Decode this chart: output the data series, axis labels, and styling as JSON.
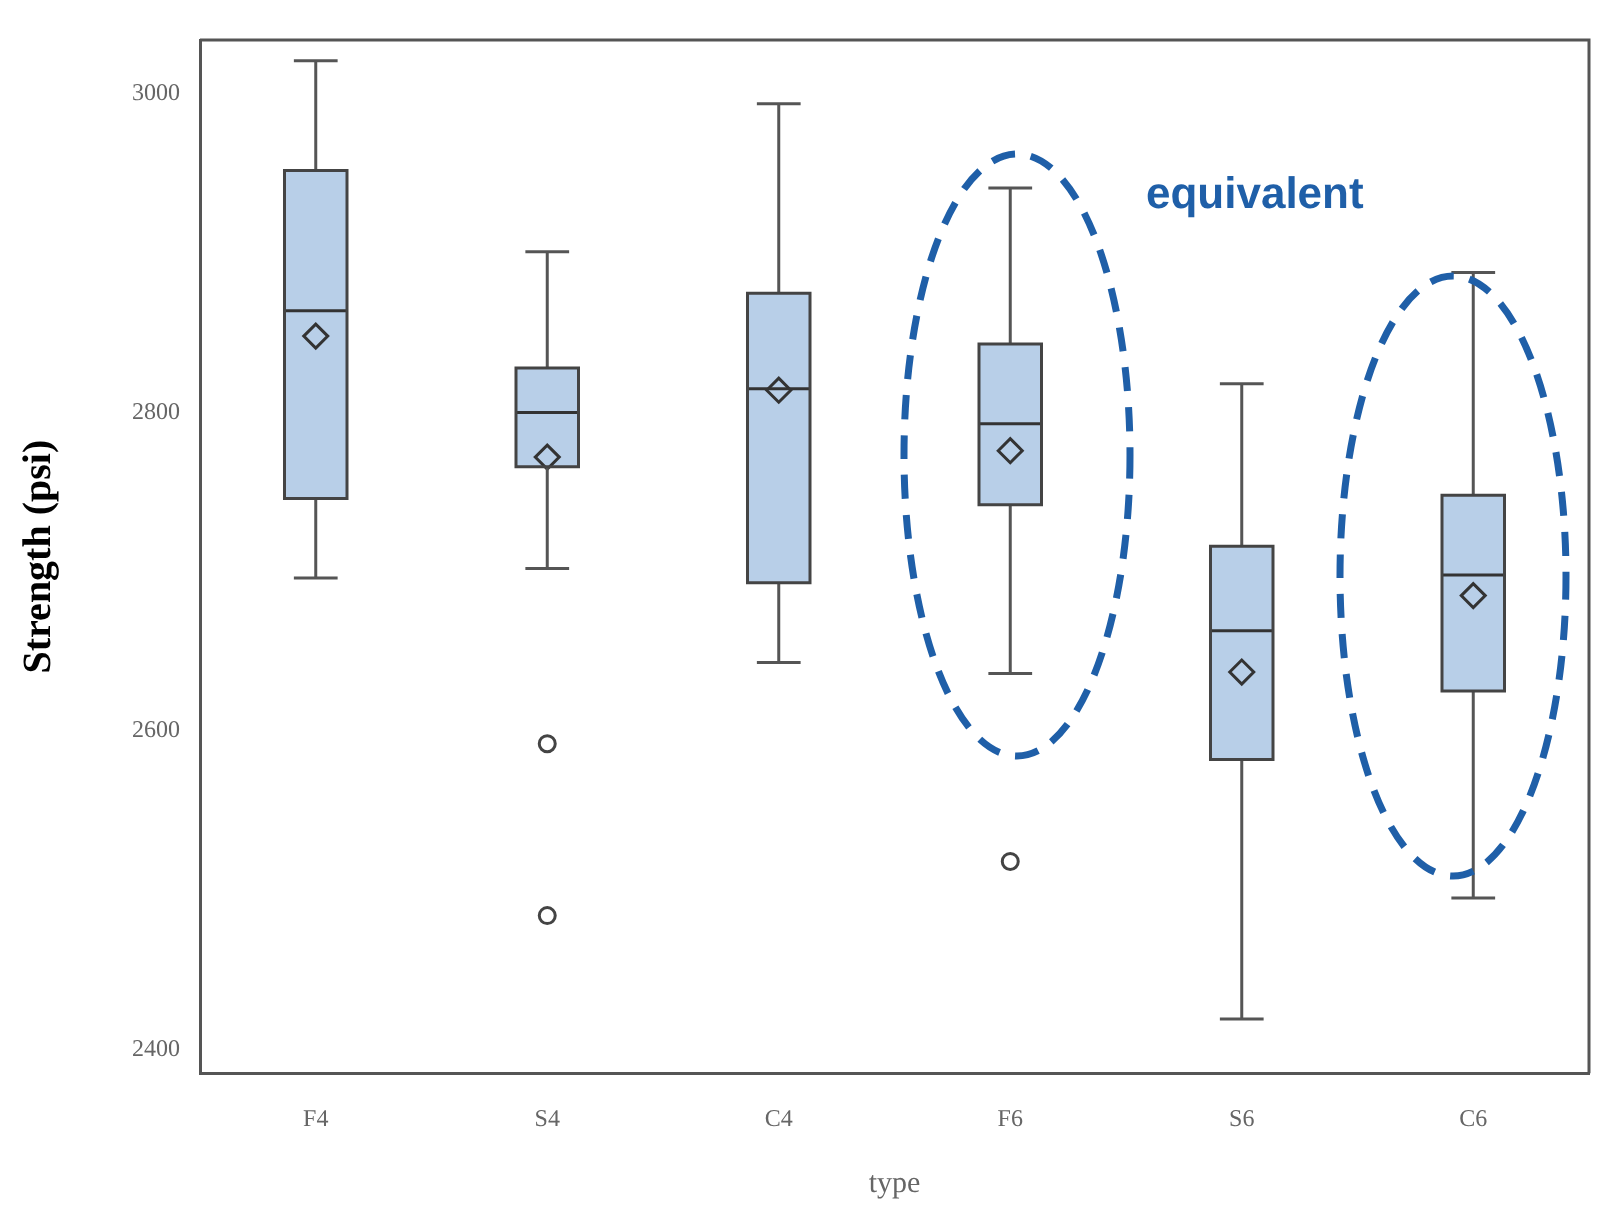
{
  "chart_data": {
    "type": "box",
    "xlabel": "type",
    "ylabel": "Strength (psi)",
    "categories": [
      "F4",
      "S4",
      "C4",
      "F6",
      "S6",
      "C6"
    ],
    "color": "#b8cfe8",
    "ylim": [
      2385,
      3034
    ],
    "yticks": [
      2400,
      2600,
      2800,
      3000
    ],
    "grid": false,
    "annotations": [
      "equivalent"
    ],
    "boxes": [
      {
        "low": 2696,
        "q1": 2746,
        "median": 2864,
        "q3": 2952,
        "high": 3021,
        "mean": 2848
      },
      {
        "low": 2702,
        "q1": 2766,
        "median": 2800,
        "q3": 2828,
        "high": 2901,
        "mean": 2772,
        "outliers": [
          2592,
          2484
        ]
      },
      {
        "low": 2643,
        "q1": 2693,
        "median": 2815,
        "q3": 2875,
        "high": 2994,
        "mean": 2814
      },
      {
        "low": 2636,
        "q1": 2742,
        "median": 2793,
        "q3": 2843,
        "high": 2941,
        "mean": 2776,
        "outliers": [
          2518
        ]
      },
      {
        "low": 2419,
        "q1": 2582,
        "median": 2663,
        "q3": 2716,
        "high": 2818,
        "mean": 2637
      },
      {
        "low": 2495,
        "q1": 2625,
        "median": 2698,
        "q3": 2748,
        "high": 2888,
        "mean": 2685
      }
    ]
  }
}
